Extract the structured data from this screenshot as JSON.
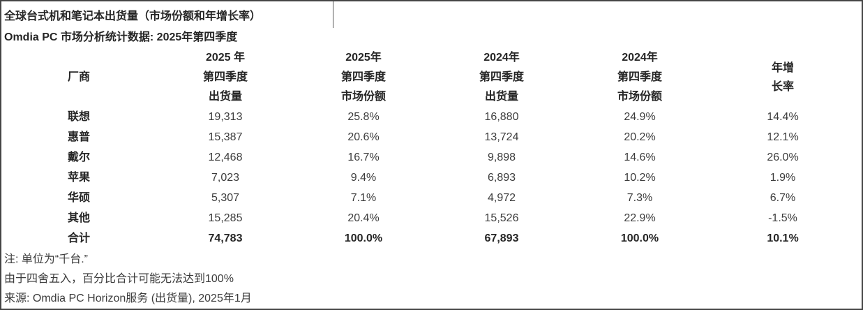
{
  "title": "全球台式机和笔记本出货量（市场份额和年增长率）",
  "subtitle": "Omdia PC 市场分析统计数据: 2025年第四季度",
  "table": {
    "vendor_header": "厂商",
    "column_headers": [
      {
        "lines": [
          "2025 年",
          "第四季度",
          "出货量"
        ]
      },
      {
        "lines": [
          "2025年",
          "第四季度",
          "市场份额"
        ]
      },
      {
        "lines": [
          "2024年",
          "第四季度",
          "出货量"
        ]
      },
      {
        "lines": [
          "2024年",
          "第四季度",
          "市场份额"
        ]
      },
      {
        "lines": [
          "年增",
          "长率"
        ]
      }
    ],
    "rows": [
      {
        "vendor": "联想",
        "values": [
          "19,313",
          "25.8%",
          "16,880",
          "24.9%",
          "14.4%"
        ]
      },
      {
        "vendor": "惠普",
        "values": [
          "15,387",
          "20.6%",
          "13,724",
          "20.2%",
          "12.1%"
        ]
      },
      {
        "vendor": "戴尔",
        "values": [
          "12,468",
          "16.7%",
          "9,898",
          "14.6%",
          "26.0%"
        ]
      },
      {
        "vendor": "苹果",
        "values": [
          "7,023",
          "9.4%",
          "6,893",
          "10.2%",
          "1.9%"
        ]
      },
      {
        "vendor": "华硕",
        "values": [
          "5,307",
          "7.1%",
          "4,972",
          "7.3%",
          "6.7%"
        ]
      },
      {
        "vendor": "其他",
        "values": [
          "15,285",
          "20.4%",
          "15,526",
          "22.9%",
          "-1.5%"
        ]
      },
      {
        "vendor": "合计",
        "values": [
          "74,783",
          "100.0%",
          "67,893",
          "100.0%",
          "10.1%"
        ]
      }
    ]
  },
  "notes": [
    "注: 单位为“千台.”",
    "由于四舍五入，百分比合计可能无法达到100%",
    "来源: Omdia PC Horizon服务 (出货量), 2025年1月"
  ],
  "colors": {
    "background": "#ffffff",
    "border": "#454545",
    "text_regular": "#3c3c3c",
    "text_bold": "#262626"
  },
  "chart_data": {
    "type": "table",
    "title": "全球台式机和笔记本出货量（市场份额和年增长率）",
    "subtitle": "Omdia PC 市场分析统计数据: 2025年第四季度",
    "unit": "千台",
    "columns": [
      "厂商",
      "2025年第四季度出货量",
      "2025年第四季度市场份额",
      "2024年第四季度出货量",
      "2024年第四季度市场份额",
      "年增长率"
    ],
    "rows": [
      [
        "联想",
        19313,
        "25.8%",
        16880,
        "24.9%",
        "14.4%"
      ],
      [
        "惠普",
        15387,
        "20.6%",
        13724,
        "20.2%",
        "12.1%"
      ],
      [
        "戴尔",
        12468,
        "16.7%",
        9898,
        "14.6%",
        "26.0%"
      ],
      [
        "苹果",
        7023,
        "9.4%",
        6893,
        "10.2%",
        "1.9%"
      ],
      [
        "华硕",
        5307,
        "7.1%",
        4972,
        "7.3%",
        "6.7%"
      ],
      [
        "其他",
        15285,
        "20.4%",
        15526,
        "22.9%",
        "-1.5%"
      ],
      [
        "合计",
        74783,
        "100.0%",
        67893,
        "100.0%",
        "10.1%"
      ]
    ],
    "source": "Omdia PC Horizon服务 (出货量), 2025年1月"
  }
}
